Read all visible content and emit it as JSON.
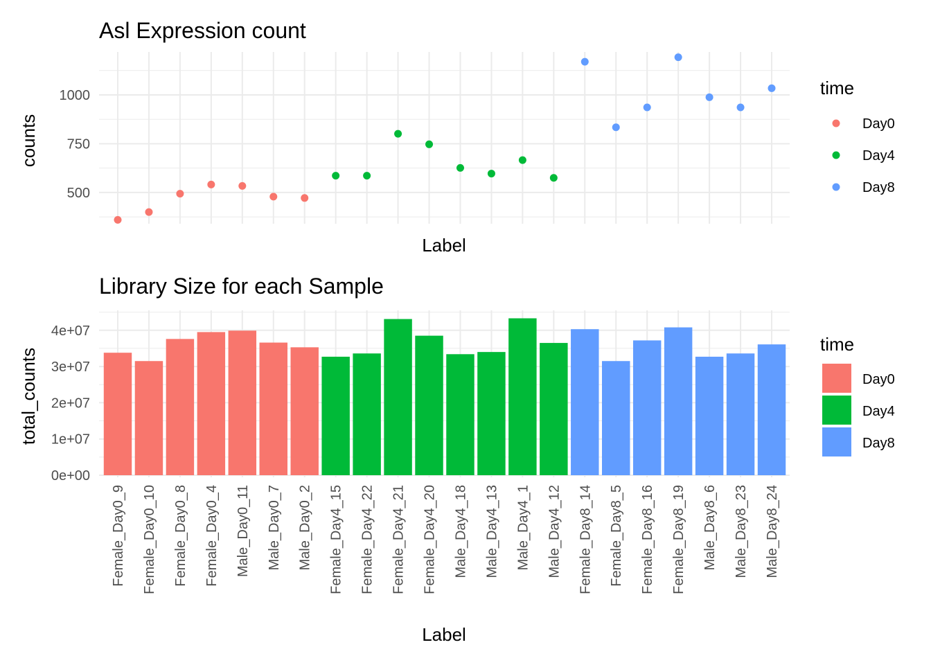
{
  "colors": {
    "Day0": "#F8766D",
    "Day4": "#00BA38",
    "Day8": "#619CFF"
  },
  "chart_data": [
    {
      "type": "scatter",
      "title": "Asl Expression count",
      "xlabel": "Label",
      "ylabel": "counts",
      "ylim": [
        340,
        1220
      ],
      "yticks": [
        500,
        750,
        1000
      ],
      "grid": true,
      "legend": {
        "title": "time",
        "position": "right",
        "entries": [
          "Day0",
          "Day4",
          "Day8"
        ]
      },
      "categories": [
        "Female_Day0_9",
        "Female_Day0_10",
        "Female_Day0_8",
        "Female_Day0_4",
        "Male_Day0_11",
        "Male_Day0_7",
        "Male_Day0_2",
        "Female_Day4_15",
        "Female_Day4_22",
        "Female_Day4_21",
        "Female_Day4_20",
        "Male_Day4_18",
        "Male_Day4_13",
        "Male_Day4_1",
        "Male_Day4_12",
        "Female_Day8_14",
        "Female_Day8_5",
        "Female_Day8_16",
        "Female_Day8_19",
        "Male_Day8_6",
        "Male_Day8_23",
        "Male_Day8_24"
      ],
      "group": [
        "Day0",
        "Day0",
        "Day0",
        "Day0",
        "Day0",
        "Day0",
        "Day0",
        "Day4",
        "Day4",
        "Day4",
        "Day4",
        "Day4",
        "Day4",
        "Day4",
        "Day4",
        "Day8",
        "Day8",
        "Day8",
        "Day8",
        "Day8",
        "Day8",
        "Day8"
      ],
      "values": [
        360,
        400,
        494,
        541,
        534,
        479,
        472,
        586,
        586,
        801,
        747,
        626,
        597,
        666,
        575,
        1170,
        834,
        936,
        1193,
        988,
        936,
        1034
      ]
    },
    {
      "type": "bar",
      "title": "Library Size for each Sample",
      "xlabel": "Label",
      "ylabel": "total_counts",
      "ylim": [
        0,
        45500000
      ],
      "yticks": [
        0,
        10000000,
        20000000,
        30000000,
        40000000
      ],
      "ytick_labels": [
        "0e+00",
        "1e+07",
        "2e+07",
        "3e+07",
        "4e+07"
      ],
      "grid": true,
      "legend": {
        "title": "time",
        "position": "right",
        "entries": [
          "Day0",
          "Day4",
          "Day8"
        ]
      },
      "categories": [
        "Female_Day0_9",
        "Female_Day0_10",
        "Female_Day0_8",
        "Female_Day0_4",
        "Male_Day0_11",
        "Male_Day0_7",
        "Male_Day0_2",
        "Female_Day4_15",
        "Female_Day4_22",
        "Female_Day4_21",
        "Female_Day4_20",
        "Male_Day4_18",
        "Male_Day4_13",
        "Male_Day4_1",
        "Male_Day4_12",
        "Female_Day8_14",
        "Female_Day8_5",
        "Female_Day8_16",
        "Female_Day8_19",
        "Male_Day8_6",
        "Male_Day8_23",
        "Male_Day8_24"
      ],
      "group": [
        "Day0",
        "Day0",
        "Day0",
        "Day0",
        "Day0",
        "Day0",
        "Day0",
        "Day4",
        "Day4",
        "Day4",
        "Day4",
        "Day4",
        "Day4",
        "Day4",
        "Day4",
        "Day8",
        "Day8",
        "Day8",
        "Day8",
        "Day8",
        "Day8",
        "Day8"
      ],
      "values": [
        33800000,
        31500000,
        37600000,
        39500000,
        39900000,
        36600000,
        35300000,
        32700000,
        33600000,
        43100000,
        38500000,
        33400000,
        34000000,
        43300000,
        36500000,
        40300000,
        31500000,
        37200000,
        40800000,
        32700000,
        33600000,
        36100000
      ]
    }
  ]
}
